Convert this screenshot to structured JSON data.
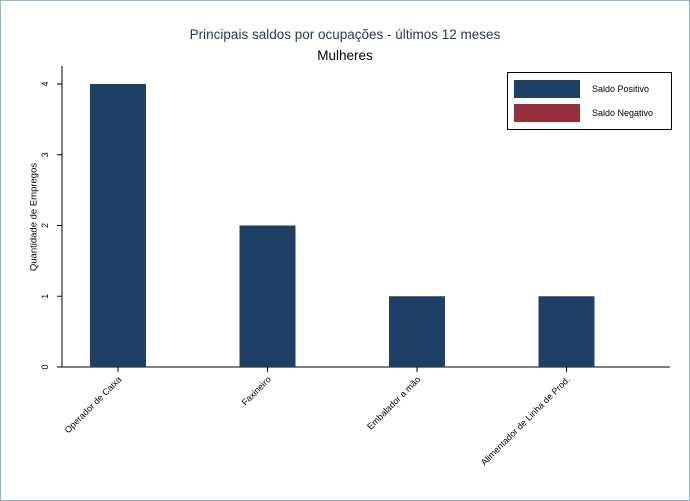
{
  "chart_data": {
    "type": "bar",
    "title": "Principais saldos por ocupações - últimos 12 meses",
    "subtitle": "Mulheres",
    "ylabel": "Quantidade de Empregos",
    "xlabel": "",
    "categories": [
      "Operador de Caixa",
      "Faxineiro",
      "Embalador a mão",
      "Alimentador de Linha de Prod."
    ],
    "series": [
      {
        "name": "Saldo Positivo",
        "values": [
          4,
          2,
          1,
          1
        ],
        "color": "#1e4067"
      },
      {
        "name": "Saldo Negativo",
        "values": [
          0,
          0,
          0,
          0
        ],
        "color": "#94303b"
      }
    ],
    "ylim": [
      0,
      4
    ],
    "yticks": [
      0,
      1,
      2,
      3,
      4
    ],
    "grid": false,
    "legend_position": "top-right"
  }
}
